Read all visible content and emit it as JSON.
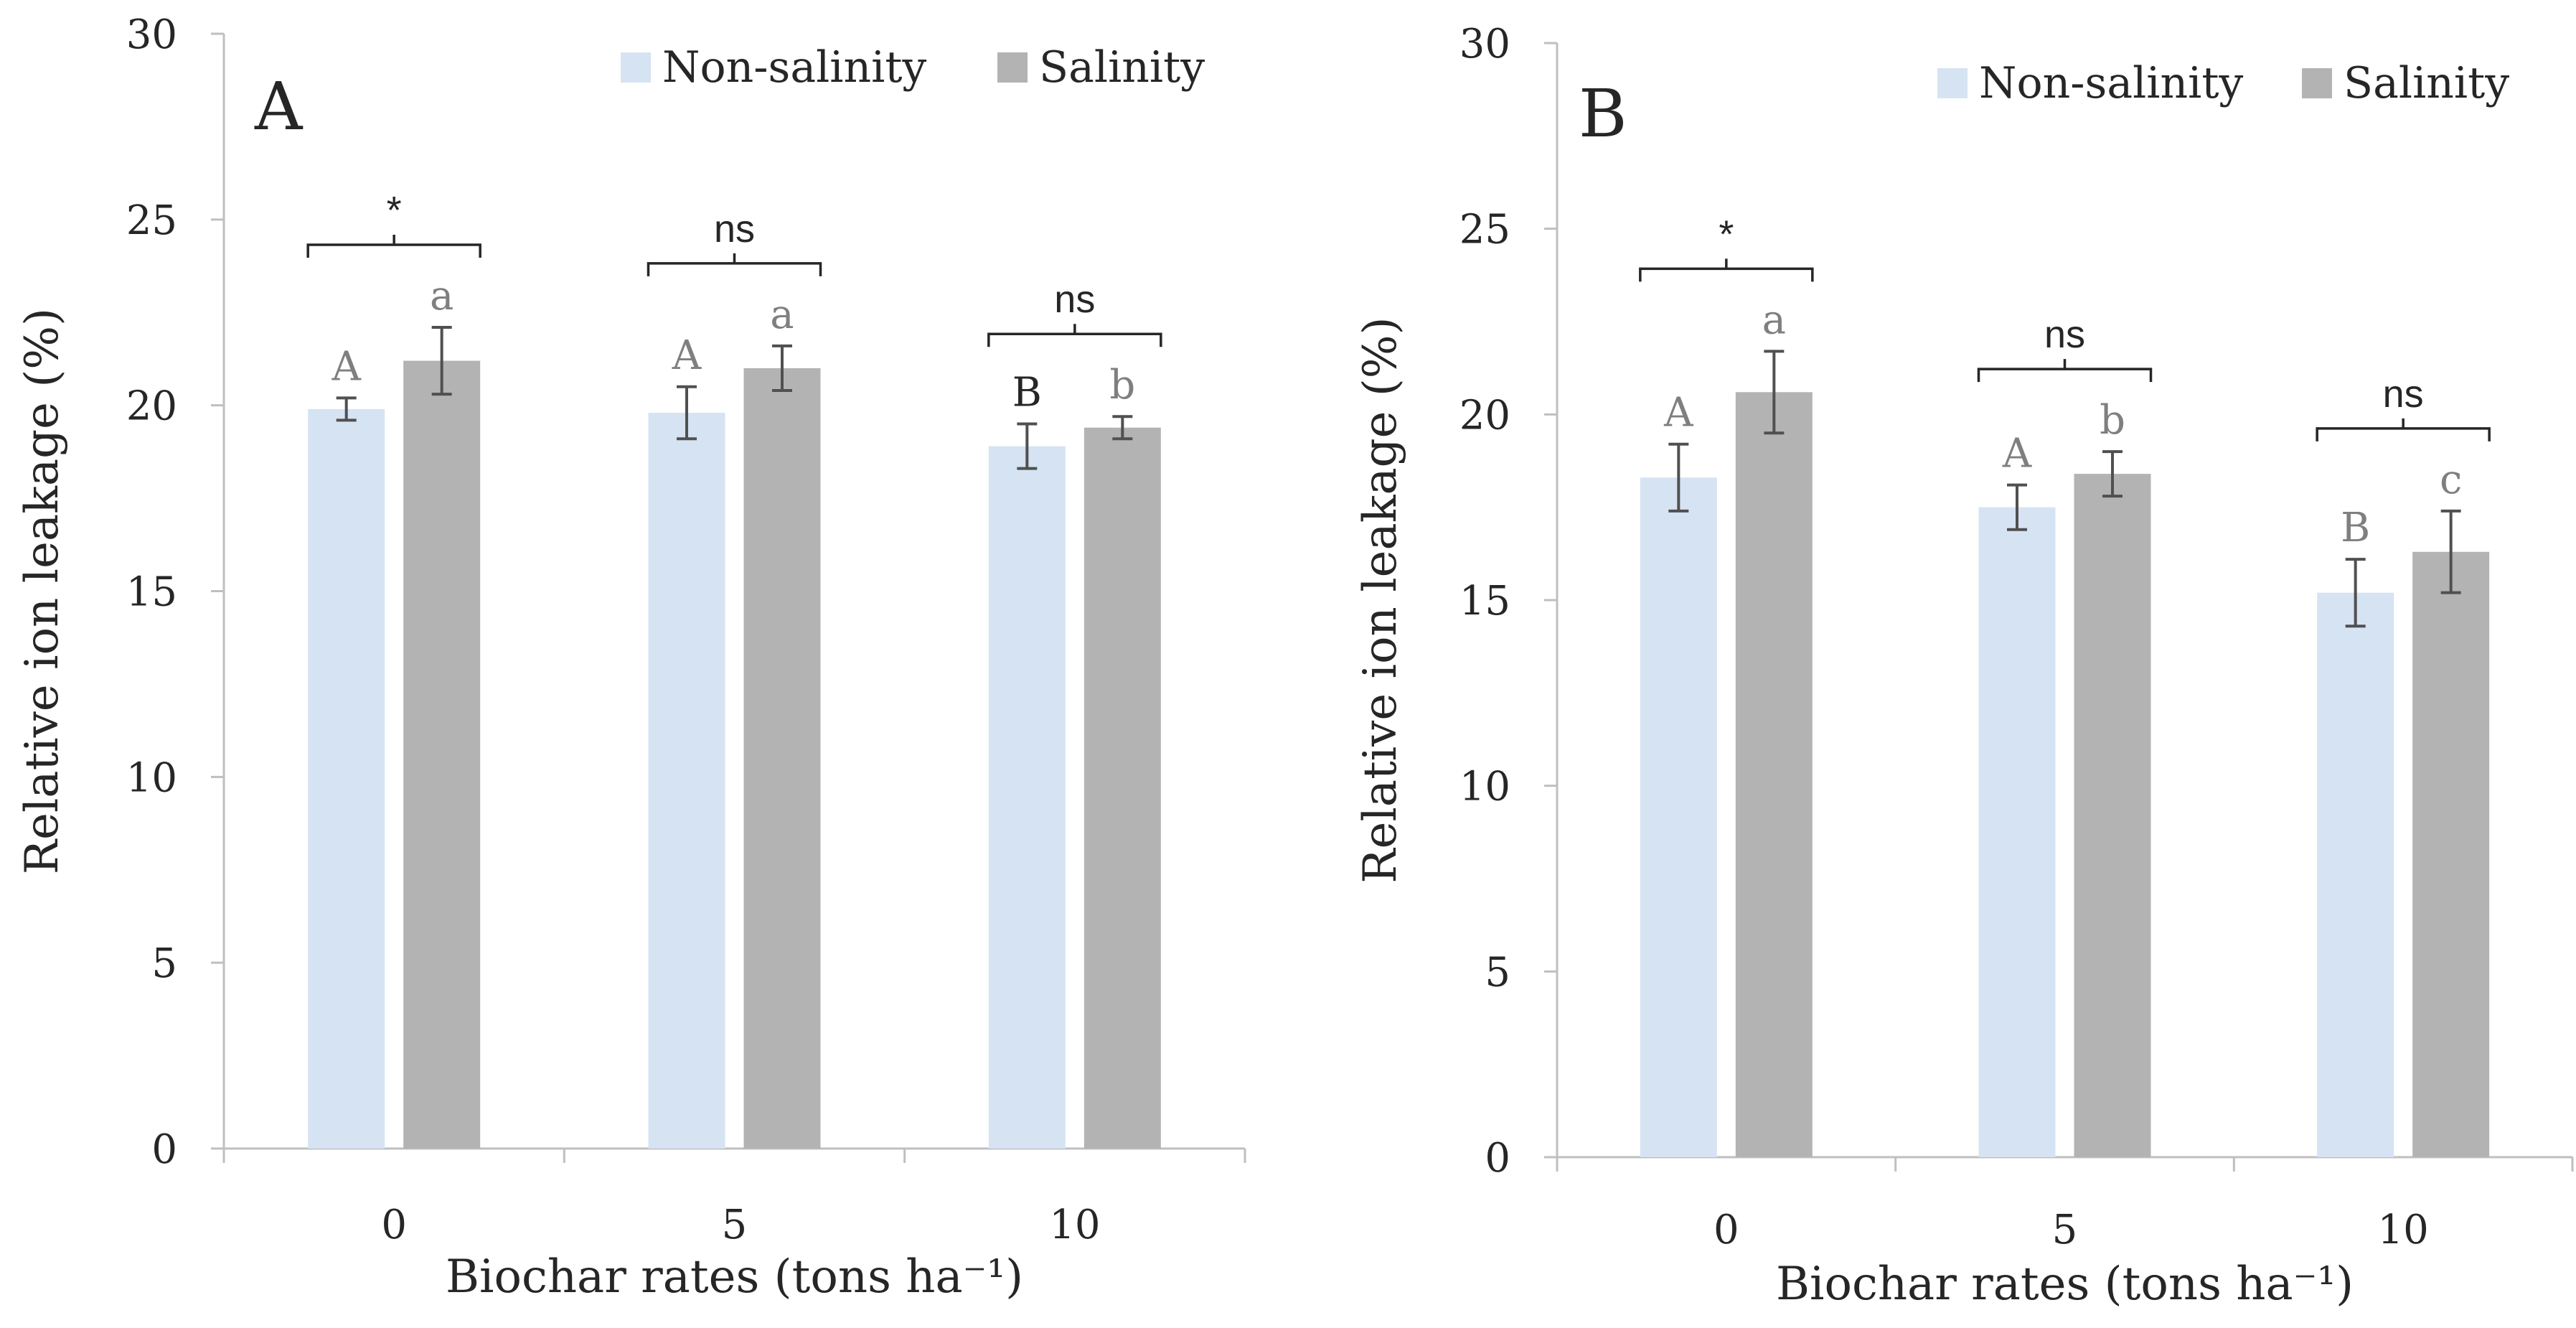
{
  "legend": {
    "non_salinity": "Non-salinity",
    "salinity": "Salinity"
  },
  "colors": {
    "non_salinity": "#d6e3f3",
    "salinity": "#b3b3b3",
    "error_bar": "#505050",
    "axis": "#bfbfbf",
    "text": "#262626",
    "letter": "#7f7f7f"
  },
  "chart_data": [
    {
      "type": "bar",
      "panel_label": "A",
      "categories": [
        "0",
        "5",
        "10"
      ],
      "xlabel": "Biochar rates (tons ha⁻¹)",
      "ylabel": "Relative ion leakage (%)",
      "ylim": [
        0,
        30
      ],
      "yticks": [
        "0",
        "5",
        "10",
        "15",
        "20",
        "25",
        "30"
      ],
      "series": [
        {
          "name": "Non-salinity",
          "values": [
            19.9,
            19.8,
            18.9
          ],
          "errors": [
            0.3,
            0.7,
            0.6
          ],
          "letters": [
            "A",
            "A",
            "B"
          ]
        },
        {
          "name": "Salinity",
          "values": [
            21.2,
            21.0,
            19.4
          ],
          "errors": [
            0.9,
            0.6,
            0.3
          ],
          "letters": [
            "a",
            "a",
            "b"
          ]
        }
      ],
      "significance": [
        "*",
        "ns",
        "ns"
      ]
    },
    {
      "type": "bar",
      "panel_label": "B",
      "categories": [
        "0",
        "5",
        "10"
      ],
      "xlabel": "Biochar rates (tons ha⁻¹)",
      "ylabel": "Relative ion leakage (%)",
      "ylim": [
        0,
        30
      ],
      "yticks": [
        "0",
        "5",
        "10",
        "15",
        "20",
        "25",
        "30"
      ],
      "series": [
        {
          "name": "Non-salinity",
          "values": [
            18.3,
            17.5,
            15.2
          ],
          "errors": [
            0.9,
            0.6,
            0.9
          ],
          "letters": [
            "A",
            "A",
            "B"
          ]
        },
        {
          "name": "Salinity",
          "values": [
            20.6,
            18.4,
            16.3
          ],
          "errors": [
            1.1,
            0.6,
            1.1
          ],
          "letters": [
            "a",
            "b",
            "c"
          ]
        }
      ],
      "significance": [
        "*",
        "ns",
        "ns"
      ]
    }
  ]
}
